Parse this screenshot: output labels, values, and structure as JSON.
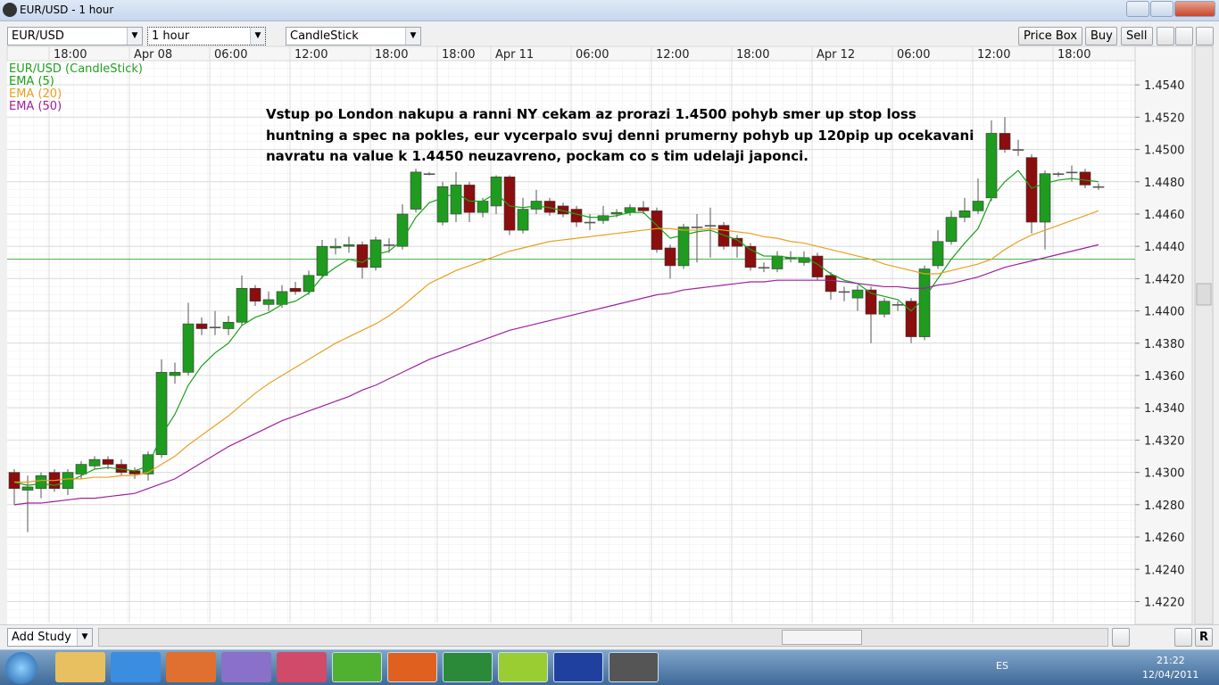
{
  "window": {
    "title": "EUR/USD - 1 hour"
  },
  "toolbar": {
    "symbol": "EUR/USD",
    "interval": "1 hour",
    "chart_style": "CandleStick",
    "buttons": [
      "Price Box",
      "Buy",
      "Sell"
    ]
  },
  "chart_data": {
    "type": "candlestick",
    "categories": [
      null,
      null,
      null,
      "18:00",
      null,
      null,
      null,
      null,
      null,
      "Apr 08",
      null,
      null,
      null,
      null,
      null,
      "06:00",
      null,
      null,
      null,
      null,
      null,
      "12:00",
      null,
      null,
      null,
      null,
      null,
      "18:00",
      null,
      null,
      null,
      null,
      "18:00",
      null,
      null,
      null,
      "Apr 11",
      null,
      null,
      null,
      null,
      null,
      "06:00",
      null,
      null,
      null,
      null,
      null,
      "12:00",
      null,
      null,
      null,
      null,
      null,
      "18:00",
      null,
      null,
      null,
      null,
      null,
      "Apr 12",
      null,
      null,
      null,
      null,
      null,
      "06:00",
      null,
      null,
      null,
      null,
      null,
      "12:00",
      null,
      null,
      null,
      null,
      null,
      "18:00",
      null,
      null,
      null
    ],
    "series": [
      {
        "name": "EUR/USD (CandleStick)",
        "color": "#22a022",
        "up_color": "#1f9b1f",
        "down_color": "#8b0d0d",
        "open": [
          1.43,
          1.4289,
          1.429,
          1.43,
          1.429,
          1.4299,
          1.4304,
          1.4308,
          1.4305,
          1.4301,
          1.4299,
          1.4311,
          1.436,
          1.4362,
          1.4392,
          1.439,
          1.4389,
          1.4393,
          1.4414,
          1.4404,
          1.4404,
          1.4414,
          1.4412,
          1.4422,
          1.4439,
          1.444,
          1.4441,
          1.4427,
          1.4441,
          1.444,
          1.4463,
          1.4485,
          1.4455,
          1.446,
          1.4478,
          1.4461,
          1.4465,
          1.4483,
          1.445,
          1.4463,
          1.4468,
          1.4465,
          1.4463,
          1.4455,
          1.4456,
          1.446,
          1.4461,
          1.4464,
          1.4462,
          1.4439,
          1.4428,
          1.4452,
          1.4453,
          1.4453,
          1.4445,
          1.444,
          1.4427,
          1.4426,
          1.4433,
          1.443,
          1.4434,
          1.4422,
          1.4412,
          1.4408,
          1.4413,
          1.4398,
          1.4404,
          1.4406,
          1.4384,
          1.4428,
          1.4443,
          1.4458,
          1.4462,
          1.447,
          1.451,
          1.45,
          1.4495,
          1.4455,
          1.4485,
          1.4486,
          1.4486,
          1.4477
        ],
        "high": [
          1.4302,
          1.4298,
          1.43,
          1.4302,
          1.4302,
          1.4307,
          1.431,
          1.431,
          1.4308,
          1.4303,
          1.4313,
          1.437,
          1.4368,
          1.4405,
          1.4396,
          1.44,
          1.4397,
          1.4422,
          1.4416,
          1.4412,
          1.4416,
          1.4418,
          1.4425,
          1.4444,
          1.4445,
          1.4446,
          1.4443,
          1.4446,
          1.4445,
          1.4466,
          1.4488,
          1.4486,
          1.448,
          1.4486,
          1.448,
          1.447,
          1.4484,
          1.4484,
          1.447,
          1.4475,
          1.447,
          1.4467,
          1.4465,
          1.446,
          1.4465,
          1.4463,
          1.4466,
          1.4468,
          1.4464,
          1.4441,
          1.4454,
          1.446,
          1.4464,
          1.4455,
          1.4447,
          1.4442,
          1.443,
          1.4437,
          1.4437,
          1.4437,
          1.4436,
          1.4424,
          1.4415,
          1.4416,
          1.4415,
          1.4408,
          1.4406,
          1.4408,
          1.4428,
          1.445,
          1.4462,
          1.447,
          1.4482,
          1.4518,
          1.452,
          1.4506,
          1.4497,
          1.4487,
          1.4486,
          1.449,
          1.4488,
          1.4479
        ],
        "low": [
          1.428,
          1.4263,
          1.4284,
          1.4288,
          1.4286,
          1.4296,
          1.4302,
          1.4302,
          1.4298,
          1.4296,
          1.4295,
          1.4309,
          1.4355,
          1.436,
          1.4385,
          1.4385,
          1.4385,
          1.4391,
          1.4403,
          1.44,
          1.4402,
          1.441,
          1.441,
          1.442,
          1.4435,
          1.4436,
          1.442,
          1.4425,
          1.4436,
          1.4438,
          1.4461,
          1.4484,
          1.4453,
          1.4455,
          1.4455,
          1.4458,
          1.446,
          1.4447,
          1.4448,
          1.446,
          1.4459,
          1.4458,
          1.4452,
          1.445,
          1.4454,
          1.4458,
          1.4459,
          1.446,
          1.4436,
          1.442,
          1.4426,
          1.443,
          1.4433,
          1.4438,
          1.4433,
          1.4425,
          1.4424,
          1.4424,
          1.443,
          1.4428,
          1.4419,
          1.4407,
          1.4406,
          1.44,
          1.438,
          1.4396,
          1.44,
          1.438,
          1.4382,
          1.4426,
          1.4441,
          1.4455,
          1.446,
          1.4468,
          1.4498,
          1.4496,
          1.4448,
          1.4438,
          1.4483,
          1.448,
          1.4476,
          1.4475
        ],
        "close": [
          1.429,
          1.4291,
          1.4298,
          1.429,
          1.43,
          1.4305,
          1.4308,
          1.4305,
          1.43,
          1.4299,
          1.4311,
          1.4362,
          1.4362,
          1.4392,
          1.4389,
          1.439,
          1.4393,
          1.4414,
          1.4406,
          1.4407,
          1.4412,
          1.4412,
          1.4422,
          1.444,
          1.444,
          1.4441,
          1.4427,
          1.4444,
          1.4441,
          1.446,
          1.4486,
          1.4485,
          1.4477,
          1.4478,
          1.4461,
          1.4468,
          1.4483,
          1.445,
          1.4463,
          1.4468,
          1.4461,
          1.446,
          1.4455,
          1.4455,
          1.4459,
          1.4461,
          1.4464,
          1.4462,
          1.4438,
          1.4428,
          1.4452,
          1.4452,
          1.4453,
          1.444,
          1.444,
          1.4427,
          1.4427,
          1.4434,
          1.4433,
          1.4433,
          1.4421,
          1.4412,
          1.4412,
          1.4413,
          1.4398,
          1.4406,
          1.4404,
          1.4384,
          1.4426,
          1.4443,
          1.4458,
          1.4462,
          1.4468,
          1.451,
          1.45,
          1.45,
          1.4455,
          1.4485,
          1.4485,
          1.4486,
          1.4478,
          1.4477
        ]
      },
      {
        "name": "EMA (5)",
        "type": "line",
        "color": "#1aa01a",
        "values": [
          1.4294,
          1.4292,
          1.4293,
          1.4292,
          1.4294,
          1.4298,
          1.4302,
          1.4303,
          1.4302,
          1.4301,
          1.4304,
          1.4323,
          1.4336,
          1.4354,
          1.4366,
          1.4374,
          1.438,
          1.4391,
          1.4396,
          1.4399,
          1.4404,
          1.4406,
          1.4411,
          1.4421,
          1.4427,
          1.4432,
          1.443,
          1.4435,
          1.4437,
          1.4444,
          1.4458,
          1.4467,
          1.447,
          1.4473,
          1.4468,
          1.4468,
          1.4473,
          1.4465,
          1.4464,
          1.4465,
          1.4464,
          1.4462,
          1.446,
          1.4458,
          1.4458,
          1.4459,
          1.4461,
          1.4461,
          1.4453,
          1.4445,
          1.4447,
          1.4449,
          1.445,
          1.4447,
          1.4444,
          1.4438,
          1.4434,
          1.4434,
          1.4433,
          1.4433,
          1.4429,
          1.4423,
          1.4419,
          1.4417,
          1.4411,
          1.4409,
          1.4407,
          1.44,
          1.4408,
          1.442,
          1.4432,
          1.4442,
          1.4451,
          1.447,
          1.448,
          1.4487,
          1.4476,
          1.4479,
          1.4481,
          1.4482,
          1.4481,
          1.448
        ]
      },
      {
        "name": "EMA (20)",
        "type": "line",
        "color": "#e8a020",
        "values": [
          1.4294,
          1.4294,
          1.4295,
          1.4295,
          1.4296,
          1.4296,
          1.4297,
          1.4297,
          1.4298,
          1.4298,
          1.43,
          1.4305,
          1.431,
          1.4317,
          1.4323,
          1.4329,
          1.4335,
          1.4342,
          1.4349,
          1.4355,
          1.436,
          1.4365,
          1.437,
          1.4375,
          1.438,
          1.4384,
          1.4388,
          1.4392,
          1.4397,
          1.4403,
          1.441,
          1.4417,
          1.4421,
          1.4425,
          1.4428,
          1.4431,
          1.4434,
          1.4437,
          1.4439,
          1.4441,
          1.4443,
          1.4444,
          1.4445,
          1.4446,
          1.4447,
          1.4448,
          1.4449,
          1.445,
          1.4451,
          1.4451,
          1.445,
          1.445,
          1.4451,
          1.445,
          1.4449,
          1.4448,
          1.4446,
          1.4445,
          1.4443,
          1.4442,
          1.444,
          1.4438,
          1.4436,
          1.4434,
          1.4432,
          1.4429,
          1.4427,
          1.4425,
          1.4423,
          1.4423,
          1.4425,
          1.4427,
          1.4429,
          1.4432,
          1.4438,
          1.4443,
          1.4447,
          1.445,
          1.4453,
          1.4456,
          1.4459,
          1.4462
        ]
      },
      {
        "name": "EMA (50)",
        "type": "line",
        "color": "#a020a0",
        "values": [
          1.428,
          1.4281,
          1.4281,
          1.4282,
          1.4283,
          1.4284,
          1.4284,
          1.4285,
          1.4286,
          1.4287,
          1.429,
          1.4293,
          1.4296,
          1.4301,
          1.4306,
          1.4311,
          1.4316,
          1.432,
          1.4324,
          1.4328,
          1.4332,
          1.4335,
          1.4338,
          1.4341,
          1.4344,
          1.4347,
          1.4351,
          1.4354,
          1.4358,
          1.4362,
          1.4366,
          1.437,
          1.4373,
          1.4376,
          1.4379,
          1.4382,
          1.4385,
          1.4388,
          1.439,
          1.4392,
          1.4394,
          1.4396,
          1.4398,
          1.44,
          1.4402,
          1.4404,
          1.4406,
          1.4408,
          1.441,
          1.4411,
          1.4413,
          1.4414,
          1.4415,
          1.4416,
          1.4417,
          1.4418,
          1.4418,
          1.4419,
          1.4419,
          1.4419,
          1.4419,
          1.4419,
          1.4418,
          1.4417,
          1.4416,
          1.4415,
          1.4415,
          1.4414,
          1.4414,
          1.4416,
          1.4417,
          1.4419,
          1.4421,
          1.4424,
          1.4427,
          1.4429,
          1.4431,
          1.4433,
          1.4435,
          1.4437,
          1.4439,
          1.4441
        ]
      }
    ],
    "annotation": [
      "Vstup po London nakupu a ranni NY cekam az prorazi 1.4500 pohyb smer up stop loss",
      "huntning a spec na pokles, eur vycerpalo svuj denni prumerny pohyb up 120pip up ocekavani",
      "navratu na value k 1.4450  neuzavreno, pockam co s tim udelaji japonci."
    ],
    "hline": 1.4432,
    "hline_color": "#3cb33c",
    "ylim": [
      1.4207,
      1.4555
    ],
    "yticks": [
      {
        "value": 1.422,
        "label": "1.4220"
      },
      {
        "value": 1.424,
        "label": "1.4240"
      },
      {
        "value": 1.426,
        "label": "1.4260"
      },
      {
        "value": 1.428,
        "label": "1.4280"
      },
      {
        "value": 1.43,
        "label": "1.4300"
      },
      {
        "value": 1.432,
        "label": "1.4320"
      },
      {
        "value": 1.434,
        "label": "1.4340"
      },
      {
        "value": 1.436,
        "label": "1.4360"
      },
      {
        "value": 1.438,
        "label": "1.4380"
      },
      {
        "value": 1.44,
        "label": "1.4400"
      },
      {
        "value": 1.442,
        "label": "1.4420"
      },
      {
        "value": 1.444,
        "label": "1.4440"
      },
      {
        "value": 1.446,
        "label": "1.4460"
      },
      {
        "value": 1.448,
        "label": "1.4480"
      },
      {
        "value": 1.45,
        "label": "1.4500"
      },
      {
        "value": 1.452,
        "label": "1.4520"
      },
      {
        "value": 1.454,
        "label": "1.4540"
      }
    ],
    "grid": true
  },
  "bottom": {
    "add_study": "Add Study",
    "reset": "R"
  },
  "taskbar": {
    "language": "ES",
    "time": "21:22",
    "date": "12/04/2011"
  }
}
